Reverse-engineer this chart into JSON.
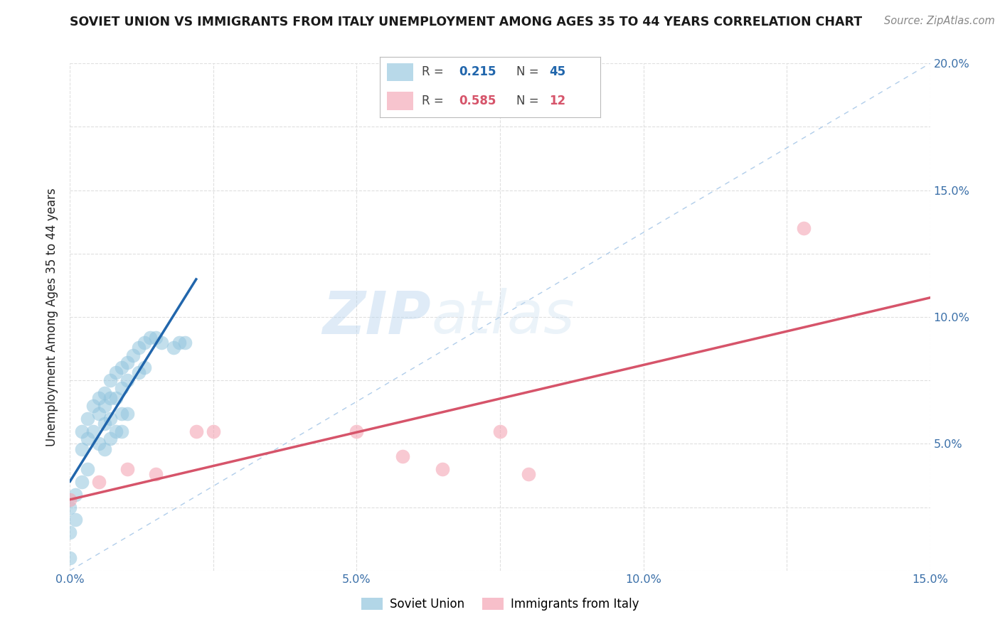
{
  "title": "SOVIET UNION VS IMMIGRANTS FROM ITALY UNEMPLOYMENT AMONG AGES 35 TO 44 YEARS CORRELATION CHART",
  "source": "Source: ZipAtlas.com",
  "ylabel": "Unemployment Among Ages 35 to 44 years",
  "xlim": [
    0,
    0.15
  ],
  "ylim": [
    0,
    0.2
  ],
  "soviet_R": 0.215,
  "soviet_N": 45,
  "italy_R": 0.585,
  "italy_N": 12,
  "soviet_color": "#92c5de",
  "italy_color": "#f4a5b4",
  "soviet_line_color": "#2166ac",
  "italy_line_color": "#d6546a",
  "diagonal_color": "#a8c8e8",
  "watermark_zip": "ZIP",
  "watermark_atlas": "atlas",
  "soviet_x": [
    0.0,
    0.0,
    0.0,
    0.001,
    0.001,
    0.002,
    0.002,
    0.002,
    0.003,
    0.003,
    0.003,
    0.004,
    0.004,
    0.005,
    0.005,
    0.005,
    0.006,
    0.006,
    0.006,
    0.006,
    0.007,
    0.007,
    0.007,
    0.007,
    0.008,
    0.008,
    0.008,
    0.009,
    0.009,
    0.009,
    0.009,
    0.01,
    0.01,
    0.01,
    0.011,
    0.012,
    0.012,
    0.013,
    0.013,
    0.014,
    0.015,
    0.016,
    0.018,
    0.019,
    0.02
  ],
  "soviet_y": [
    0.025,
    0.015,
    0.005,
    0.03,
    0.02,
    0.055,
    0.048,
    0.035,
    0.06,
    0.052,
    0.04,
    0.065,
    0.055,
    0.068,
    0.062,
    0.05,
    0.07,
    0.065,
    0.058,
    0.048,
    0.075,
    0.068,
    0.06,
    0.052,
    0.078,
    0.068,
    0.055,
    0.08,
    0.072,
    0.062,
    0.055,
    0.082,
    0.075,
    0.062,
    0.085,
    0.088,
    0.078,
    0.09,
    0.08,
    0.092,
    0.092,
    0.09,
    0.088,
    0.09,
    0.09
  ],
  "italy_x": [
    0.0,
    0.005,
    0.01,
    0.015,
    0.022,
    0.025,
    0.05,
    0.058,
    0.065,
    0.075,
    0.08,
    0.128
  ],
  "italy_y": [
    0.028,
    0.035,
    0.04,
    0.038,
    0.055,
    0.055,
    0.055,
    0.045,
    0.04,
    0.055,
    0.038,
    0.135
  ],
  "background_color": "#ffffff",
  "grid_color": "#d8d8d8"
}
